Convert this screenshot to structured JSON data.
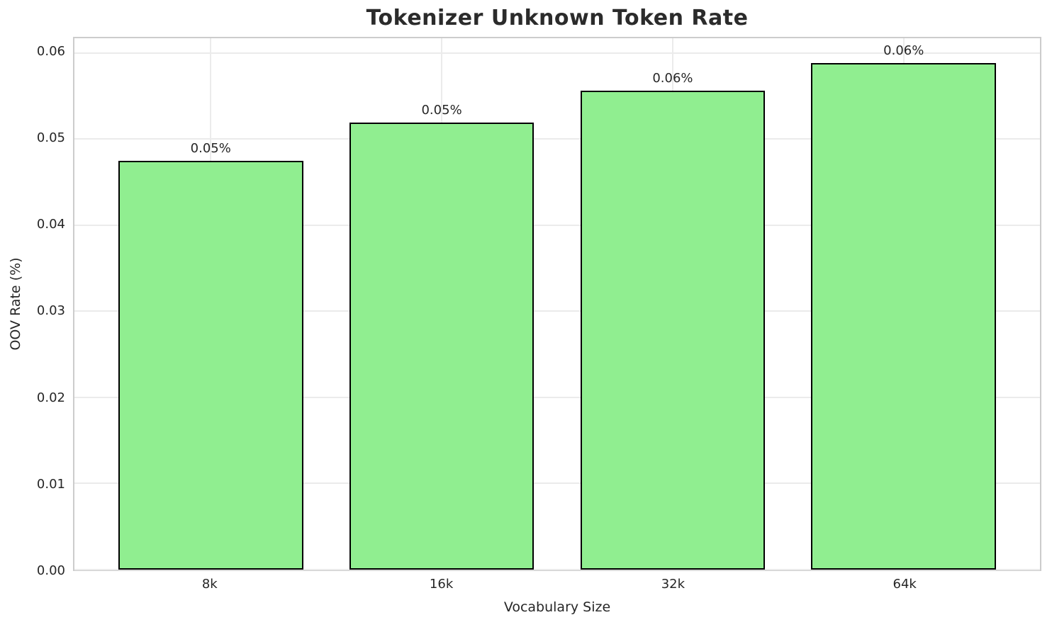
{
  "chart_data": {
    "type": "bar",
    "title": "Tokenizer Unknown Token Rate",
    "xlabel": "Vocabulary Size",
    "ylabel": "OOV Rate (%)",
    "categories": [
      "8k",
      "16k",
      "32k",
      "64k"
    ],
    "values": [
      0.0475,
      0.0519,
      0.0556,
      0.0588
    ],
    "value_labels": [
      "0.05%",
      "0.05%",
      "0.06%",
      "0.06%"
    ],
    "ytick_values": [
      0.0,
      0.01,
      0.02,
      0.03,
      0.04,
      0.05,
      0.06
    ],
    "ytick_labels": [
      "0.00",
      "0.01",
      "0.02",
      "0.03",
      "0.04",
      "0.05",
      "0.06"
    ],
    "ylim": [
      0,
      0.0617
    ],
    "xlim": [
      -0.59,
      3.59
    ],
    "bar_width": 0.8,
    "bar_color": "#90EE90",
    "bar_edge_color": "#000000",
    "grid": true,
    "legend": false,
    "plot_background": "#ffffff",
    "grid_color": "#ebebeb",
    "spine_color": "#cccccc",
    "text_color": "#262626"
  }
}
